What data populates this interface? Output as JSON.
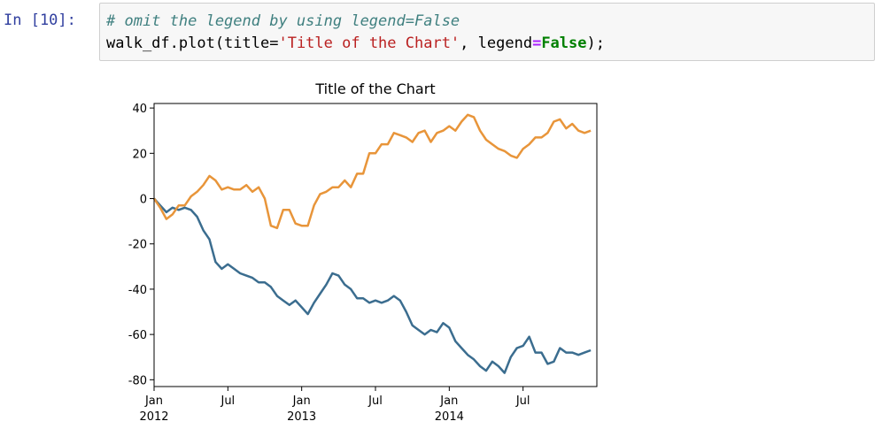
{
  "cell": {
    "prompt": "In [10]:",
    "comment": "# omit the legend by using legend=False",
    "code_prefix": "walk_df.plot(title=",
    "code_string": "'Title of the Chart'",
    "code_mid": ", legend",
    "code_eq": "=",
    "code_keyword": "False",
    "code_suffix": ");"
  },
  "colors": {
    "series_blue": "#3b6d8f",
    "series_orange": "#e8953a",
    "comment": "#408080",
    "prompt": "#303f9f"
  },
  "chart_data": {
    "type": "line",
    "title": "Title of the Chart",
    "xlabel": "",
    "ylabel": "",
    "legend": false,
    "grid": false,
    "xlim": [
      0,
      36
    ],
    "ylim": [
      -83,
      42
    ],
    "yticks": [
      40,
      20,
      0,
      -20,
      -40,
      -60,
      -80
    ],
    "xticks": [
      {
        "x": 0,
        "label": "Jan",
        "sublabel": "2012"
      },
      {
        "x": 6,
        "label": "Jul",
        "sublabel": ""
      },
      {
        "x": 12,
        "label": "Jan",
        "sublabel": "2013"
      },
      {
        "x": 18,
        "label": "Jul",
        "sublabel": ""
      },
      {
        "x": 24,
        "label": "Jan",
        "sublabel": "2014"
      },
      {
        "x": 30,
        "label": "Jul",
        "sublabel": ""
      }
    ],
    "x_unit": "months since Jan 2012",
    "series": [
      {
        "color": "#3b6d8f",
        "values": [
          [
            0,
            0
          ],
          [
            0.5,
            -3
          ],
          [
            1,
            -6
          ],
          [
            1.5,
            -4
          ],
          [
            2,
            -5
          ],
          [
            2.5,
            -4
          ],
          [
            3,
            -5
          ],
          [
            3.5,
            -8
          ],
          [
            4,
            -14
          ],
          [
            4.5,
            -18
          ],
          [
            5,
            -28
          ],
          [
            5.5,
            -31
          ],
          [
            6,
            -29
          ],
          [
            6.5,
            -31
          ],
          [
            7,
            -33
          ],
          [
            7.5,
            -34
          ],
          [
            8,
            -35
          ],
          [
            8.5,
            -37
          ],
          [
            9,
            -37
          ],
          [
            9.5,
            -39
          ],
          [
            10,
            -43
          ],
          [
            10.5,
            -45
          ],
          [
            11,
            -47
          ],
          [
            11.5,
            -45
          ],
          [
            12,
            -48
          ],
          [
            12.5,
            -51
          ],
          [
            13,
            -46
          ],
          [
            13.5,
            -42
          ],
          [
            14,
            -38
          ],
          [
            14.5,
            -33
          ],
          [
            15,
            -34
          ],
          [
            15.5,
            -38
          ],
          [
            16,
            -40
          ],
          [
            16.5,
            -44
          ],
          [
            17,
            -44
          ],
          [
            17.5,
            -46
          ],
          [
            18,
            -45
          ],
          [
            18.5,
            -46
          ],
          [
            19,
            -45
          ],
          [
            19.5,
            -43
          ],
          [
            20,
            -45
          ],
          [
            20.5,
            -50
          ],
          [
            21,
            -56
          ],
          [
            21.5,
            -58
          ],
          [
            22,
            -60
          ],
          [
            22.5,
            -58
          ],
          [
            23,
            -59
          ],
          [
            23.5,
            -55
          ],
          [
            24,
            -57
          ],
          [
            24.5,
            -63
          ],
          [
            25,
            -66
          ],
          [
            25.5,
            -69
          ],
          [
            26,
            -71
          ],
          [
            26.5,
            -74
          ],
          [
            27,
            -76
          ],
          [
            27.5,
            -72
          ],
          [
            28,
            -74
          ],
          [
            28.5,
            -77
          ],
          [
            29,
            -70
          ],
          [
            29.5,
            -66
          ],
          [
            30,
            -65
          ],
          [
            30.5,
            -61
          ],
          [
            31,
            -68
          ],
          [
            31.5,
            -68
          ],
          [
            32,
            -73
          ],
          [
            32.5,
            -72
          ],
          [
            33,
            -66
          ],
          [
            33.5,
            -68
          ],
          [
            34,
            -68
          ],
          [
            34.5,
            -69
          ],
          [
            35,
            -68
          ],
          [
            35.5,
            -67
          ]
        ]
      },
      {
        "color": "#e8953a",
        "values": [
          [
            0,
            0
          ],
          [
            0.5,
            -4
          ],
          [
            1,
            -9
          ],
          [
            1.5,
            -7
          ],
          [
            2,
            -3
          ],
          [
            2.5,
            -3
          ],
          [
            3,
            1
          ],
          [
            3.5,
            3
          ],
          [
            4,
            6
          ],
          [
            4.5,
            10
          ],
          [
            5,
            8
          ],
          [
            5.5,
            4
          ],
          [
            6,
            5
          ],
          [
            6.5,
            4
          ],
          [
            7,
            4
          ],
          [
            7.5,
            6
          ],
          [
            8,
            3
          ],
          [
            8.5,
            5
          ],
          [
            9,
            0
          ],
          [
            9.5,
            -12
          ],
          [
            10,
            -13
          ],
          [
            10.5,
            -5
          ],
          [
            11,
            -5
          ],
          [
            11.5,
            -11
          ],
          [
            12,
            -12
          ],
          [
            12.5,
            -12
          ],
          [
            13,
            -3
          ],
          [
            13.5,
            2
          ],
          [
            14,
            3
          ],
          [
            14.5,
            5
          ],
          [
            15,
            5
          ],
          [
            15.5,
            8
          ],
          [
            16,
            5
          ],
          [
            16.5,
            11
          ],
          [
            17,
            11
          ],
          [
            17.5,
            20
          ],
          [
            18,
            20
          ],
          [
            18.5,
            24
          ],
          [
            19,
            24
          ],
          [
            19.5,
            29
          ],
          [
            20,
            28
          ],
          [
            20.5,
            27
          ],
          [
            21,
            25
          ],
          [
            21.5,
            29
          ],
          [
            22,
            30
          ],
          [
            22.5,
            25
          ],
          [
            23,
            29
          ],
          [
            23.5,
            30
          ],
          [
            24,
            32
          ],
          [
            24.5,
            30
          ],
          [
            25,
            34
          ],
          [
            25.5,
            37
          ],
          [
            26,
            36
          ],
          [
            26.5,
            30
          ],
          [
            27,
            26
          ],
          [
            27.5,
            24
          ],
          [
            28,
            22
          ],
          [
            28.5,
            21
          ],
          [
            29,
            19
          ],
          [
            29.5,
            18
          ],
          [
            30,
            22
          ],
          [
            30.5,
            24
          ],
          [
            31,
            27
          ],
          [
            31.5,
            27
          ],
          [
            32,
            29
          ],
          [
            32.5,
            34
          ],
          [
            33,
            35
          ],
          [
            33.5,
            31
          ],
          [
            34,
            33
          ],
          [
            34.5,
            30
          ],
          [
            35,
            29
          ],
          [
            35.5,
            30
          ]
        ]
      }
    ]
  }
}
